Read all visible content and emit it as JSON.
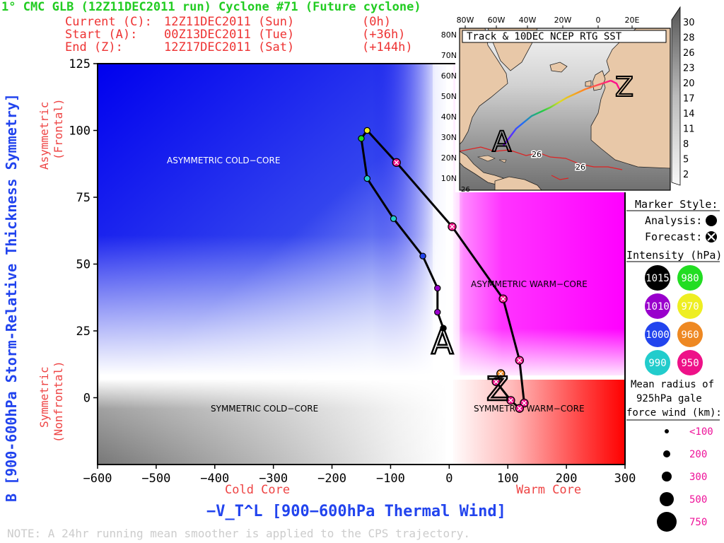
{
  "header": {
    "title": "1° CMC GLB (12Z11DEC2011 run) Cyclone #71 (Future cyclone)",
    "rows": [
      {
        "label": "Current (C):",
        "date": "12Z11DEC2011 (Sun)",
        "offset": "(0h)"
      },
      {
        "label": "Start (A):",
        "date": "00Z13DEC2011 (Tue)",
        "offset": "(+36h)"
      },
      {
        "label": "End (Z):",
        "date": "12Z17DEC2011 (Sat)",
        "offset": "(+144h)"
      }
    ]
  },
  "y_axis": {
    "title": "B [900-600hPa Storm-Relative Thickness Symmetry]",
    "upper_label": [
      "Asymmetric",
      "(Frontal)"
    ],
    "lower_label": [
      "Symmetric",
      "(Nonfrontal)"
    ]
  },
  "x_axis": {
    "title": "−V_T^L [900−600hPa Thermal Wind]",
    "left_label": "Cold Core",
    "right_label": "Warm Core"
  },
  "region_labels": {
    "acc": "ASYMMETRIC COLD−CORE",
    "awc": "ASYMMETRIC WARM−CORE",
    "scc": "SYMMETRIC COLD−CORE",
    "swc": "SYMMETRIC WARM−CORE"
  },
  "track_markers": {
    "start": "A",
    "end": "Z"
  },
  "inset": {
    "title": "Track & 10DEC NCEP RTG SST",
    "lon_labels": [
      "80W",
      "60W",
      "40W",
      "20W",
      "0",
      "20E"
    ],
    "lat_labels": [
      "80N",
      "70N",
      "60N",
      "50N",
      "40N",
      "30N",
      "20N",
      "10N"
    ],
    "contour_labels": [
      "26",
      "26",
      "26"
    ],
    "markers": {
      "start": "A",
      "end": "Z"
    },
    "sst_colorbar": [
      "30",
      "28",
      "26",
      "23",
      "20",
      "17",
      "14",
      "11",
      "8",
      "5",
      "2"
    ]
  },
  "legend": {
    "marker_title": "Marker Style:",
    "analysis_label": "Analysis:",
    "forecast_label": "Forecast:",
    "intensity_title": "Intensity (hPa):",
    "intensity": [
      {
        "value": "1015",
        "color": "#000000",
        "text_color": "#ffffff"
      },
      {
        "value": "980",
        "color": "#22dd22",
        "text_color": "#ffffff"
      },
      {
        "value": "1010",
        "color": "#9900cc",
        "text_color": "#ffffff"
      },
      {
        "value": "970",
        "color": "#eeee22",
        "text_color": "#ffffff"
      },
      {
        "value": "1000",
        "color": "#2244ee",
        "text_color": "#ffffff"
      },
      {
        "value": "960",
        "color": "#ee8822",
        "text_color": "#ffffff"
      },
      {
        "value": "990",
        "color": "#22cccc",
        "text_color": "#ffffff"
      },
      {
        "value": "950",
        "color": "#ee1188",
        "text_color": "#ffffff"
      }
    ],
    "radius_title": [
      "Mean radius of",
      "925hPa gale",
      "force wind (km):"
    ],
    "radius": [
      "<100",
      "200",
      "300",
      "500",
      "750"
    ]
  },
  "note": "NOTE:  A 24hr running mean smoother is applied to the CPS trajectory.",
  "colors": {
    "title_green": "#22cc22",
    "header_red": "#ee3333",
    "axis_blue": "#2244ee",
    "label_red": "#ee4444",
    "note_gray": "#cccccc",
    "legend_pink": "#ee1199"
  },
  "chart_data": {
    "type": "scatter",
    "title": "1° CMC GLB (12Z11DEC2011 run) Cyclone #71 (Future cyclone)",
    "xlabel": "−V_T^L [900−600hPa Thermal Wind]",
    "ylabel": "B [900-600hPa Storm-Relative Thickness Symmetry]",
    "xlim": [
      -600,
      300
    ],
    "ylim": [
      -25,
      125
    ],
    "x_ticks": [
      -600,
      -500,
      -400,
      -300,
      -200,
      -100,
      0,
      100,
      200,
      300
    ],
    "y_ticks": [
      0,
      25,
      50,
      75,
      100,
      125
    ],
    "series": [
      {
        "points": [
          {
            "x": -10,
            "y": 26,
            "kind": "analysis",
            "intensity": "1015",
            "color": "#000000"
          },
          {
            "x": -20,
            "y": 32,
            "kind": "analysis",
            "intensity": "1010",
            "color": "#9900cc"
          },
          {
            "x": -20,
            "y": 41,
            "kind": "analysis",
            "intensity": "1010",
            "color": "#9900cc"
          },
          {
            "x": -45,
            "y": 53,
            "kind": "analysis",
            "intensity": "1000",
            "color": "#2244ee"
          },
          {
            "x": -95,
            "y": 67,
            "kind": "analysis",
            "intensity": "990",
            "color": "#22cccc"
          },
          {
            "x": -140,
            "y": 82,
            "kind": "analysis",
            "intensity": "990",
            "color": "#22cccc"
          },
          {
            "x": -150,
            "y": 97,
            "kind": "analysis",
            "intensity": "980",
            "color": "#22dd22"
          },
          {
            "x": -140,
            "y": 100,
            "kind": "analysis",
            "intensity": "970",
            "color": "#eeee22"
          },
          {
            "x": -90,
            "y": 88,
            "kind": "forecast",
            "intensity": "950",
            "color": "#ee1188"
          },
          {
            "x": 5,
            "y": 64,
            "kind": "forecast",
            "intensity": "950",
            "color": "#ee1188"
          },
          {
            "x": 92,
            "y": 37,
            "kind": "forecast",
            "intensity": "950",
            "color": "#ee1188"
          },
          {
            "x": 120,
            "y": 14,
            "kind": "forecast",
            "intensity": "950",
            "color": "#ee1188"
          },
          {
            "x": 128,
            "y": -2,
            "kind": "forecast",
            "intensity": "950",
            "color": "#ee1188"
          },
          {
            "x": 120,
            "y": -4,
            "kind": "forecast",
            "intensity": "950",
            "color": "#ee1188"
          },
          {
            "x": 105,
            "y": -1,
            "kind": "forecast",
            "intensity": "950",
            "color": "#ee1188"
          },
          {
            "x": 80,
            "y": 6,
            "kind": "forecast",
            "intensity": "950",
            "color": "#ee1188"
          },
          {
            "x": 88,
            "y": 9,
            "kind": "forecast",
            "intensity": "960",
            "color": "#ee8822"
          }
        ]
      }
    ]
  }
}
